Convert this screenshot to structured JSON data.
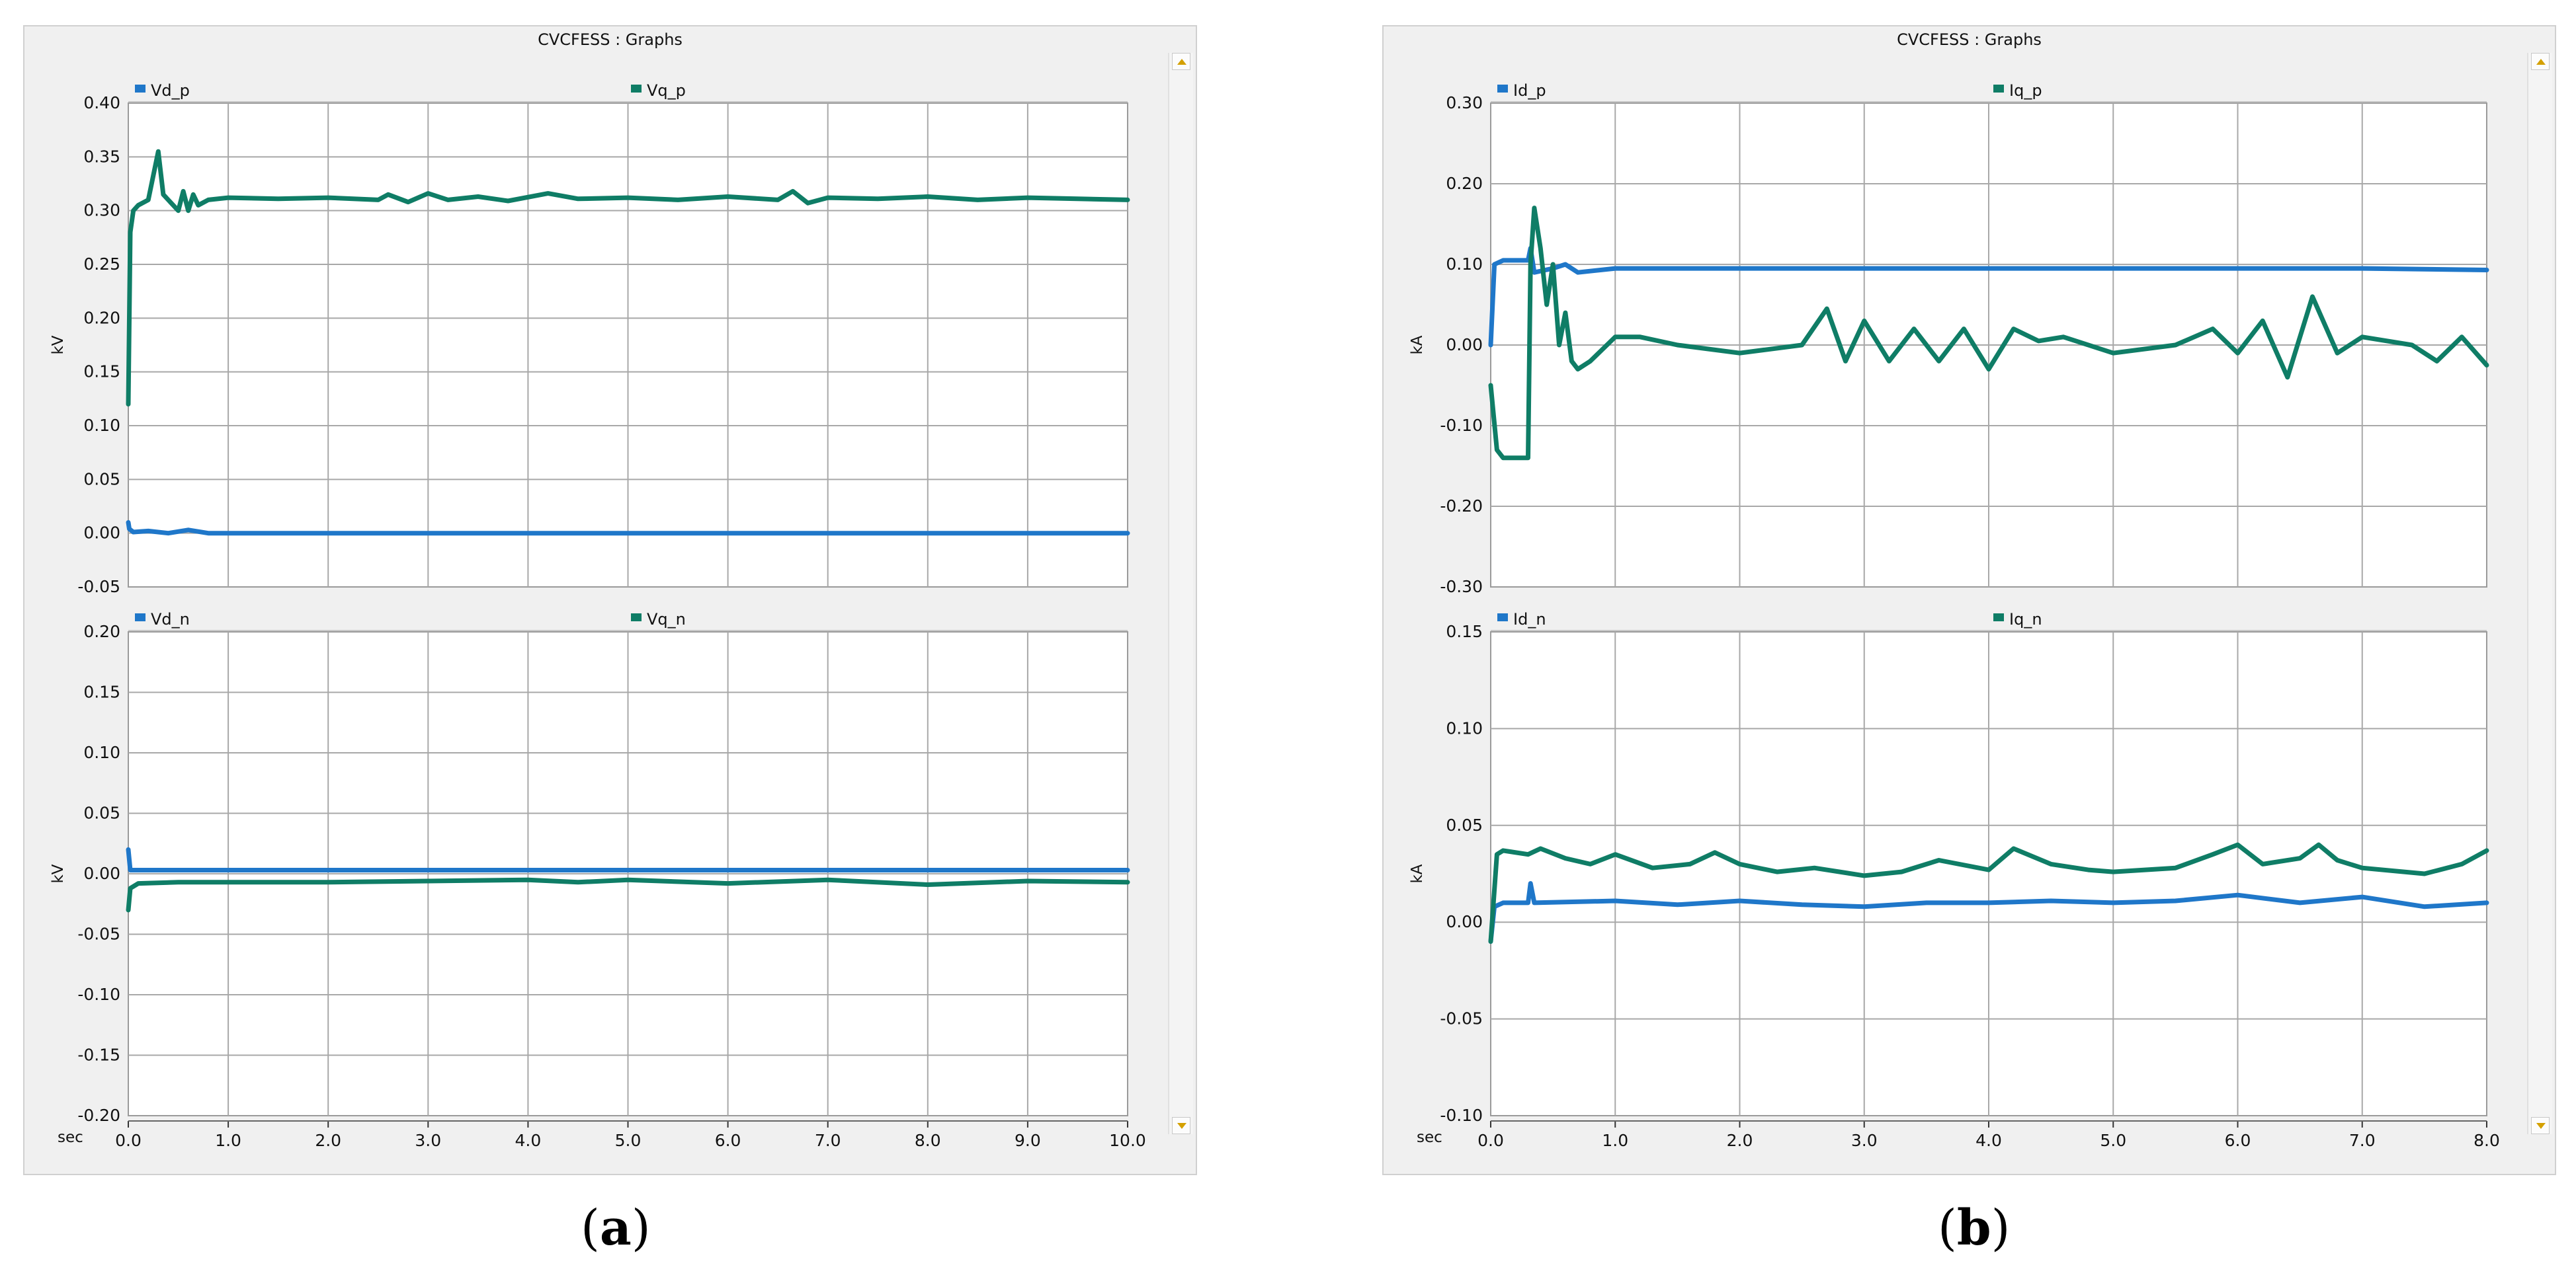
{
  "windows": [
    {
      "id": "a",
      "title": "CVCFESS : Graphs",
      "caption_letter": "a"
    },
    {
      "id": "b",
      "title": "CVCFESS : Graphs",
      "caption_letter": "b"
    }
  ],
  "colors": {
    "blue": "#1f77c9",
    "green": "#0f7d66",
    "grid": "#a8a8a8",
    "frame": "#9a9a9a"
  },
  "chart_data": [
    {
      "type": "line",
      "window": "a",
      "panel": "top",
      "ylabel": "kV",
      "xlabel": "sec",
      "xlim": [
        0,
        10
      ],
      "ylim": [
        -0.05,
        0.4
      ],
      "yticks": [
        "0.40",
        "0.35",
        "0.30",
        "0.25",
        "0.20",
        "0.15",
        "0.10",
        "0.05",
        "0.00",
        "-0.05"
      ],
      "xticks": [],
      "grid": true,
      "series": [
        {
          "name": "Vd_p",
          "color": "#1f77c9",
          "x": [
            0,
            0.01,
            0.05,
            0.2,
            0.4,
            0.6,
            0.8,
            1,
            2,
            3,
            4,
            5,
            6,
            7,
            8,
            9,
            10
          ],
          "y": [
            0.01,
            0.004,
            0.001,
            0.002,
            0.0,
            0.003,
            0.0,
            0.0,
            0.0,
            0.0,
            0.0,
            0.0,
            0.0,
            0.0,
            0.0,
            0.0,
            0.0
          ]
        },
        {
          "name": "Vq_p",
          "color": "#0f7d66",
          "x": [
            0,
            0.02,
            0.05,
            0.1,
            0.2,
            0.3,
            0.35,
            0.4,
            0.5,
            0.55,
            0.6,
            0.65,
            0.7,
            0.8,
            1,
            1.5,
            2,
            2.5,
            2.6,
            2.8,
            3.0,
            3.2,
            3.5,
            3.8,
            4.2,
            4.5,
            5,
            5.5,
            6,
            6.5,
            6.65,
            6.8,
            7,
            7.5,
            8,
            8.5,
            9,
            9.5,
            10
          ],
          "y": [
            0.12,
            0.28,
            0.3,
            0.305,
            0.31,
            0.355,
            0.315,
            0.31,
            0.3,
            0.318,
            0.3,
            0.315,
            0.305,
            0.31,
            0.312,
            0.311,
            0.312,
            0.31,
            0.315,
            0.308,
            0.316,
            0.31,
            0.313,
            0.309,
            0.316,
            0.311,
            0.312,
            0.31,
            0.313,
            0.31,
            0.318,
            0.307,
            0.312,
            0.311,
            0.313,
            0.31,
            0.312,
            0.311,
            0.31
          ]
        }
      ]
    },
    {
      "type": "line",
      "window": "a",
      "panel": "bottom",
      "ylabel": "kV",
      "xlabel": "sec",
      "xlim": [
        0,
        10
      ],
      "ylim": [
        -0.2,
        0.2
      ],
      "yticks": [
        "0.20",
        "0.15",
        "0.10",
        "0.05",
        "0.00",
        "-0.05",
        "-0.10",
        "-0.15",
        "-0.20"
      ],
      "xticks": [
        "0.0",
        "1.0",
        "2.0",
        "3.0",
        "4.0",
        "5.0",
        "6.0",
        "7.0",
        "8.0",
        "9.0",
        "10.0"
      ],
      "grid": true,
      "series": [
        {
          "name": "Vd_n",
          "color": "#1f77c9",
          "x": [
            0,
            0.02,
            0.1,
            1,
            2,
            3,
            4,
            5,
            6,
            7,
            8,
            9,
            10
          ],
          "y": [
            0.02,
            0.003,
            0.003,
            0.003,
            0.003,
            0.003,
            0.003,
            0.003,
            0.003,
            0.003,
            0.003,
            0.003,
            0.003
          ]
        },
        {
          "name": "Vq_n",
          "color": "#0f7d66",
          "x": [
            0,
            0.02,
            0.1,
            0.5,
            1,
            2,
            3,
            4,
            4.5,
            5,
            6,
            7,
            8,
            9,
            10
          ],
          "y": [
            -0.03,
            -0.012,
            -0.008,
            -0.007,
            -0.007,
            -0.007,
            -0.006,
            -0.005,
            -0.007,
            -0.005,
            -0.008,
            -0.005,
            -0.009,
            -0.006,
            -0.007
          ]
        }
      ]
    },
    {
      "type": "line",
      "window": "b",
      "panel": "top",
      "ylabel": "kA",
      "xlabel": "sec",
      "xlim": [
        0,
        8
      ],
      "ylim": [
        -0.3,
        0.3
      ],
      "yticks": [
        "0.30",
        "0.20",
        "0.10",
        "0.00",
        "-0.10",
        "-0.20",
        "-0.30"
      ],
      "xticks": [],
      "grid": true,
      "series": [
        {
          "name": "Id_p",
          "color": "#1f77c9",
          "x": [
            0,
            0.03,
            0.1,
            0.3,
            0.32,
            0.35,
            0.5,
            0.6,
            0.7,
            1,
            2,
            3,
            4,
            5,
            6,
            7,
            8
          ],
          "y": [
            0.0,
            0.1,
            0.105,
            0.105,
            0.12,
            0.09,
            0.095,
            0.1,
            0.09,
            0.095,
            0.095,
            0.095,
            0.095,
            0.095,
            0.095,
            0.095,
            0.093
          ]
        },
        {
          "name": "Iq_p",
          "color": "#0f7d66",
          "x": [
            0,
            0.05,
            0.1,
            0.3,
            0.32,
            0.35,
            0.4,
            0.45,
            0.5,
            0.55,
            0.6,
            0.65,
            0.7,
            0.8,
            1,
            1.2,
            1.5,
            2,
            2.5,
            2.7,
            2.85,
            3.0,
            3.2,
            3.4,
            3.6,
            3.8,
            4.0,
            4.2,
            4.4,
            4.6,
            5.0,
            5.5,
            5.8,
            6.0,
            6.2,
            6.4,
            6.6,
            6.8,
            7.0,
            7.4,
            7.6,
            7.8,
            8.0
          ],
          "y": [
            -0.05,
            -0.13,
            -0.14,
            -0.14,
            0.1,
            0.17,
            0.12,
            0.05,
            0.1,
            0.0,
            0.04,
            -0.02,
            -0.03,
            -0.02,
            0.01,
            0.01,
            0.0,
            -0.01,
            0.0,
            0.045,
            -0.02,
            0.03,
            -0.02,
            0.02,
            -0.02,
            0.02,
            -0.03,
            0.02,
            0.005,
            0.01,
            -0.01,
            0.0,
            0.02,
            -0.01,
            0.03,
            -0.04,
            0.06,
            -0.01,
            0.01,
            0.0,
            -0.02,
            0.01,
            -0.025
          ]
        }
      ]
    },
    {
      "type": "line",
      "window": "b",
      "panel": "bottom",
      "ylabel": "kA",
      "xlabel": "sec",
      "xlim": [
        0,
        8
      ],
      "ylim": [
        -0.1,
        0.15
      ],
      "yticks": [
        "0.15",
        "0.10",
        "0.05",
        "0.00",
        "-0.05",
        "-0.10"
      ],
      "xticks": [
        "0.0",
        "1.0",
        "2.0",
        "3.0",
        "4.0",
        "5.0",
        "6.0",
        "7.0",
        "8.0"
      ],
      "grid": true,
      "series": [
        {
          "name": "Id_n",
          "color": "#1f77c9",
          "x": [
            0,
            0.03,
            0.1,
            0.3,
            0.32,
            0.35,
            1,
            1.5,
            2,
            2.5,
            3,
            3.5,
            4,
            4.5,
            5,
            5.5,
            6,
            6.5,
            7,
            7.5,
            8
          ],
          "y": [
            -0.01,
            0.008,
            0.01,
            0.01,
            0.02,
            0.01,
            0.011,
            0.009,
            0.011,
            0.009,
            0.008,
            0.01,
            0.01,
            0.011,
            0.01,
            0.011,
            0.014,
            0.01,
            0.013,
            0.008,
            0.01
          ]
        },
        {
          "name": "Iq_n",
          "color": "#0f7d66",
          "x": [
            0,
            0.05,
            0.1,
            0.3,
            0.4,
            0.6,
            0.8,
            1,
            1.3,
            1.6,
            1.8,
            2,
            2.3,
            2.6,
            3,
            3.3,
            3.6,
            4,
            4.2,
            4.5,
            4.8,
            5,
            5.5,
            5.8,
            6,
            6.2,
            6.5,
            6.65,
            6.8,
            7,
            7.5,
            7.8,
            8
          ],
          "y": [
            -0.01,
            0.035,
            0.037,
            0.035,
            0.038,
            0.033,
            0.03,
            0.035,
            0.028,
            0.03,
            0.036,
            0.03,
            0.026,
            0.028,
            0.024,
            0.026,
            0.032,
            0.027,
            0.038,
            0.03,
            0.027,
            0.026,
            0.028,
            0.035,
            0.04,
            0.03,
            0.033,
            0.04,
            0.032,
            0.028,
            0.025,
            0.03,
            0.037
          ]
        }
      ]
    }
  ]
}
